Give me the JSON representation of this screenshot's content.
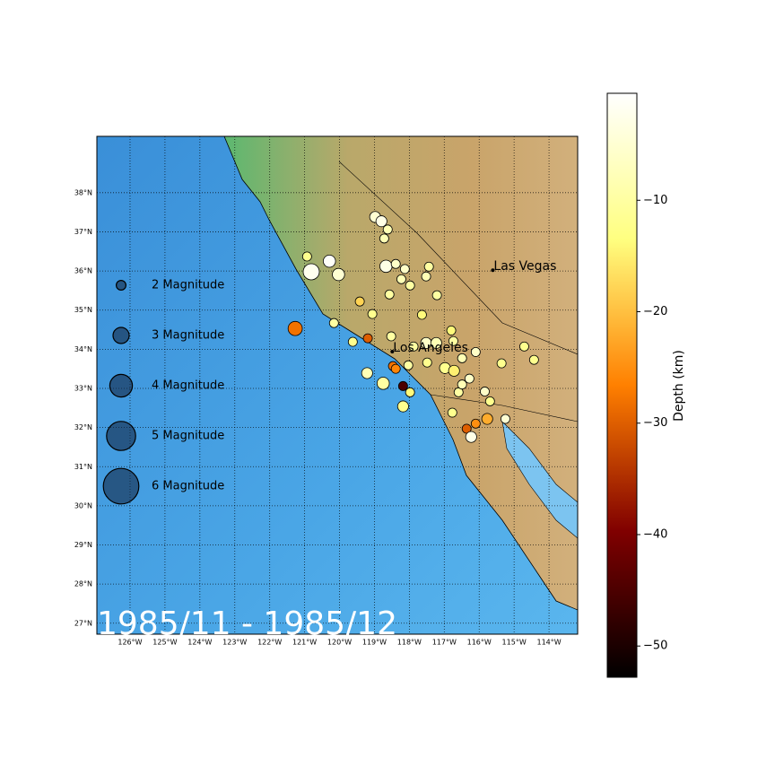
{
  "chart_data": {
    "type": "map-scatter",
    "title": "1985/11 - 1985/12",
    "xlim": [
      -126.95,
      -113.18
    ],
    "ylim": [
      26.72,
      39.44
    ],
    "xticks": [
      {
        "value": -126,
        "label": "126°W"
      },
      {
        "value": -125,
        "label": "125°W"
      },
      {
        "value": -124,
        "label": "124°W"
      },
      {
        "value": -123,
        "label": "123°W"
      },
      {
        "value": -122,
        "label": "122°W"
      },
      {
        "value": -121,
        "label": "121°W"
      },
      {
        "value": -120,
        "label": "120°W"
      },
      {
        "value": -119,
        "label": "119°W"
      },
      {
        "value": -118,
        "label": "118°W"
      },
      {
        "value": -117,
        "label": "117°W"
      },
      {
        "value": -116,
        "label": "116°W"
      },
      {
        "value": -115,
        "label": "115°W"
      },
      {
        "value": -114,
        "label": "114°W"
      }
    ],
    "yticks": [
      {
        "value": 27,
        "label": "27°N"
      },
      {
        "value": 28,
        "label": "28°N"
      },
      {
        "value": 29,
        "label": "29°N"
      },
      {
        "value": 30,
        "label": "30°N"
      },
      {
        "value": 31,
        "label": "31°N"
      },
      {
        "value": 32,
        "label": "32°N"
      },
      {
        "value": 33,
        "label": "33°N"
      },
      {
        "value": 34,
        "label": "34°N"
      },
      {
        "value": 35,
        "label": "35°N"
      },
      {
        "value": 36,
        "label": "36°N"
      },
      {
        "value": 37,
        "label": "37°N"
      },
      {
        "value": 38,
        "label": "38°N"
      }
    ],
    "grid": true,
    "cities": [
      {
        "name": "Las Vegas",
        "lon": -115.61,
        "lat": 36.02
      },
      {
        "name": "Los Angeles",
        "lon": -118.49,
        "lat": 33.94
      }
    ],
    "legend": [
      {
        "magnitude": 2,
        "label": "2 Magnitude"
      },
      {
        "magnitude": 3,
        "label": "3 Magnitude"
      },
      {
        "magnitude": 4,
        "label": "4 Magnitude"
      },
      {
        "magnitude": 5,
        "label": "5 Magnitude"
      },
      {
        "magnitude": 6,
        "label": "6 Magnitude"
      }
    ],
    "colorbar": {
      "label": "Depth (km)",
      "colormap": "afmhot",
      "clim": [
        -52.8,
        -0.4
      ],
      "ticks": [
        {
          "value": -10,
          "label": "−10"
        },
        {
          "value": -20,
          "label": "−20"
        },
        {
          "value": -30,
          "label": "−30"
        },
        {
          "value": -40,
          "label": "−40"
        },
        {
          "value": -50,
          "label": "−50"
        }
      ]
    },
    "points": {
      "lon": [
        -121.27,
        -120.93,
        -120.81,
        -120.29,
        -120.03,
        -120.16,
        -119.42,
        -119.19,
        -119.62,
        -118.98,
        -118.8,
        -118.62,
        -118.72,
        -118.67,
        -118.39,
        -118.13,
        -118.23,
        -117.98,
        -118.57,
        -117.44,
        -117.52,
        -117.21,
        -117.64,
        -119.06,
        -118.52,
        -117.88,
        -117.52,
        -117.23,
        -116.8,
        -116.74,
        -116.49,
        -116.1,
        -118.47,
        -118.03,
        -119.21,
        -118.75,
        -118.18,
        -117.98,
        -118.18,
        -116.98,
        -116.72,
        -116.28,
        -116.59,
        -115.84,
        -115.69,
        -116.77,
        -116.36,
        -116.1,
        -115.77,
        -116.23,
        -115.25,
        -115.36,
        -114.71,
        -114.43,
        -118.39,
        -117.49,
        -116.49
      ],
      "lat": [
        34.53,
        36.37,
        35.98,
        36.25,
        35.91,
        34.67,
        35.22,
        34.28,
        34.19,
        37.38,
        37.27,
        37.06,
        36.83,
        36.12,
        36.18,
        36.05,
        35.79,
        35.63,
        35.4,
        36.11,
        35.86,
        35.38,
        34.88,
        34.9,
        34.33,
        34.07,
        34.16,
        34.16,
        34.48,
        34.21,
        33.77,
        33.93,
        33.57,
        33.59,
        33.39,
        33.13,
        33.06,
        32.9,
        32.54,
        33.52,
        33.45,
        33.25,
        32.9,
        32.92,
        32.67,
        32.38,
        31.97,
        32.1,
        32.22,
        31.76,
        32.22,
        33.64,
        34.07,
        33.73,
        33.5,
        33.66,
        33.1
      ],
      "depth": [
        -28,
        -12,
        -2,
        -1,
        -5,
        -10,
        -18,
        -30,
        -12,
        -5,
        -3,
        -8,
        -8,
        -3,
        -6,
        -6,
        -8,
        -10,
        -10,
        -10,
        -8,
        -10,
        -14,
        -12,
        -10,
        -10,
        -6,
        -8,
        -14,
        -10,
        -8,
        -6,
        -28,
        -10,
        -8,
        -10,
        -45,
        -14,
        -12,
        -12,
        -15,
        -6,
        -10,
        -6,
        -12,
        -12,
        -30,
        -25,
        -22,
        -3,
        -5,
        -12,
        -12,
        -12,
        -26,
        -12,
        -8
      ],
      "magnitude": [
        2.7,
        1.9,
        3.0,
        2.4,
        2.4,
        1.9,
        1.9,
        1.9,
        1.9,
        2.2,
        2.2,
        1.9,
        1.9,
        2.4,
        1.9,
        1.9,
        1.9,
        1.9,
        1.9,
        1.9,
        1.9,
        1.9,
        1.9,
        1.9,
        1.9,
        1.9,
        2.2,
        2.2,
        1.9,
        1.9,
        1.9,
        1.9,
        1.9,
        1.9,
        2.2,
        2.4,
        1.9,
        1.9,
        2.2,
        2.2,
        2.2,
        1.9,
        1.9,
        1.9,
        1.9,
        1.9,
        1.9,
        1.9,
        2.2,
        2.2,
        1.9,
        1.9,
        1.9,
        1.9,
        1.9,
        1.9,
        1.9
      ]
    }
  }
}
